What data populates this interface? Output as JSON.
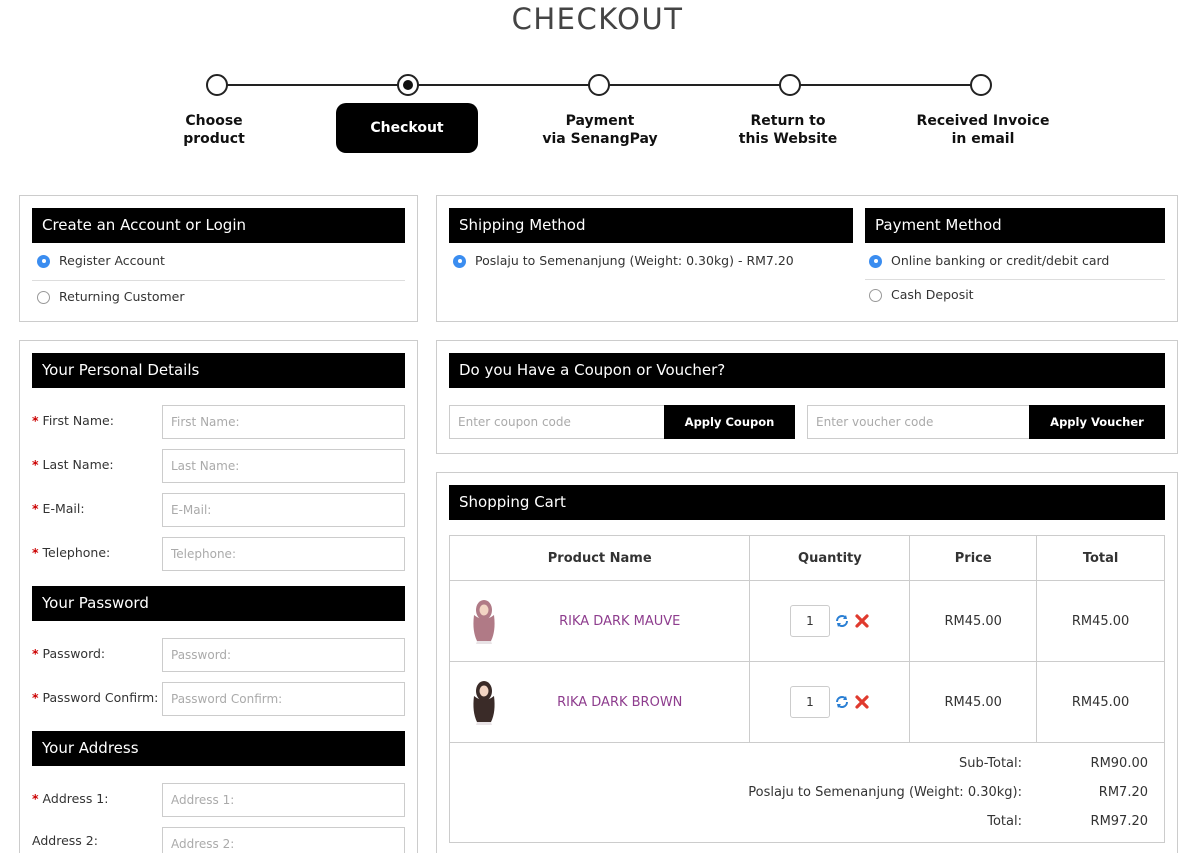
{
  "page": {
    "title": "CHECKOUT"
  },
  "steps": [
    {
      "label1": "Choose",
      "label2": "product"
    },
    {
      "label1": "Checkout",
      "label2": ""
    },
    {
      "label1": "Payment",
      "label2": "via SenangPay"
    },
    {
      "label1": "Return to",
      "label2": "this Website"
    },
    {
      "label1": "Received Invoice",
      "label2": "in email"
    }
  ],
  "account": {
    "heading": "Create an Account or Login",
    "options": [
      "Register Account",
      "Returning Customer"
    ],
    "selected": "Register Account"
  },
  "shipping": {
    "heading": "Shipping Method",
    "option": "Poslaju to Semenanjung (Weight: 0.30kg) - RM7.20"
  },
  "payment": {
    "heading": "Payment Method",
    "options": [
      "Online banking or credit/debit card",
      "Cash Deposit"
    ],
    "selected": "Online banking or credit/debit card"
  },
  "personal": {
    "heading": "Your Personal Details",
    "fields": [
      {
        "label": "First Name:",
        "placeholder": "First Name:",
        "required": true
      },
      {
        "label": "Last Name:",
        "placeholder": "Last Name:",
        "required": true
      },
      {
        "label": "E-Mail:",
        "placeholder": "E-Mail:",
        "required": true
      },
      {
        "label": "Telephone:",
        "placeholder": "Telephone:",
        "required": true
      }
    ]
  },
  "password": {
    "heading": "Your Password",
    "fields": [
      {
        "label": "Password:",
        "placeholder": "Password:",
        "required": true
      },
      {
        "label": "Password Confirm:",
        "placeholder": "Password Confirm:",
        "required": true
      }
    ]
  },
  "address": {
    "heading": "Your Address",
    "fields": [
      {
        "label": "Address 1:",
        "placeholder": "Address 1:",
        "required": true
      },
      {
        "label": "Address 2:",
        "placeholder": "Address 2:",
        "required": false
      }
    ]
  },
  "coupon": {
    "heading": "Do you Have a Coupon or Voucher?",
    "coupon_placeholder": "Enter coupon code",
    "coupon_button": "Apply Coupon",
    "voucher_placeholder": "Enter voucher code",
    "voucher_button": "Apply Voucher"
  },
  "cart": {
    "heading": "Shopping Cart",
    "columns": [
      "Product Name",
      "Quantity",
      "Price",
      "Total"
    ],
    "items": [
      {
        "name": "RIKA DARK MAUVE",
        "quantity": "1",
        "price": "RM45.00",
        "total": "RM45.00",
        "color": "#b07a86"
      },
      {
        "name": "RIKA DARK BROWN",
        "quantity": "1",
        "price": "RM45.00",
        "total": "RM45.00",
        "color": "#3a2b28"
      }
    ],
    "totals": [
      {
        "label": "Sub-Total:",
        "value": "RM90.00"
      },
      {
        "label": "Poslaju to Semenanjung (Weight: 0.30kg):",
        "value": "RM7.20"
      },
      {
        "label": "Total:",
        "value": "RM97.20"
      }
    ]
  },
  "colors": {
    "accent_radio": "#3b8df0",
    "product_link": "#8e3d8e",
    "required": "#cc0000",
    "header_bar": "#000000"
  }
}
